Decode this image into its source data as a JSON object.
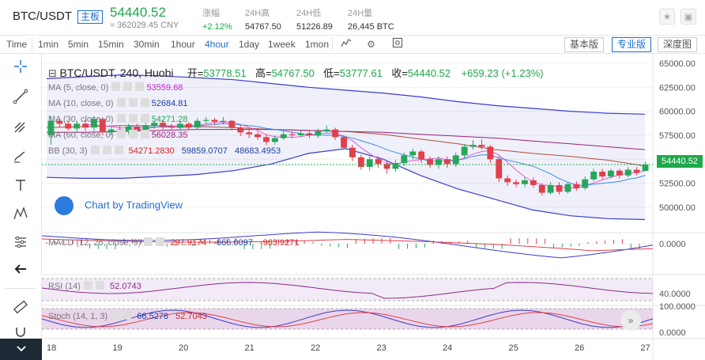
{
  "header": {
    "symbol": "BTC/USDT",
    "tag": "主板",
    "price": "54440.52",
    "cny": "≈ 362029.45 CNY",
    "stats": [
      {
        "label": "涨幅",
        "value": "+2.12%",
        "green": true
      },
      {
        "label": "24H高",
        "value": "54767.50",
        "green": false
      },
      {
        "label": "24H低",
        "value": "51226.89",
        "green": false
      },
      {
        "label": "24H量",
        "value": "26,445 BTC",
        "green": false
      }
    ],
    "star_icon": "star-icon",
    "window_icon": "window-icon"
  },
  "toolbar": {
    "time_label": "Time",
    "intervals": [
      "1min",
      "5min",
      "15min",
      "30min",
      "1hour",
      "4hour",
      "1day",
      "1week",
      "1mon"
    ],
    "active_interval": "4hour",
    "icons": [
      "indicator-icon",
      "settings-icon",
      "screenshot-icon"
    ],
    "views": [
      "基本版",
      "专业版",
      "深度图"
    ],
    "active_view": "专业版"
  },
  "tools": [
    "crosshair-icon",
    "trendline-icon",
    "pitchfork-icon",
    "brush-icon",
    "text-icon",
    "pattern-icon",
    "measure-icon",
    "arrow-left-icon",
    "ruler-icon",
    "magnet-icon"
  ],
  "legend": {
    "title": "BTC/USDT, 240, Huobi",
    "open_label": "开=",
    "open": "53778.51",
    "high_label": "高=",
    "high": "54767.50",
    "low_label": "低=",
    "low": "53777.61",
    "close_label": "收=",
    "close": "54440.52",
    "change": "+659.23 (+1.23%)",
    "ma": [
      {
        "label": "MA (5, close, 0)",
        "value": "53559.68",
        "color": "#c61fc6"
      },
      {
        "label": "MA (10, close, 0)",
        "value": "52684.81",
        "color": "#1a3fa3"
      },
      {
        "label": "MA (30, close, 0)",
        "value": "54271.28",
        "color": "#1fa84b"
      },
      {
        "label": "MA (60, close, 0)",
        "value": "56028.35",
        "color": "#9b1f7a"
      }
    ],
    "bb": {
      "label": "BB (30, 3)",
      "v1": "54271.2830",
      "v2": "59859.0707",
      "v3": "48683.4953"
    }
  },
  "price_axis": [
    "65000.00",
    "62500.00",
    "60000.00",
    "57500.00",
    "55000.00",
    "52500.00",
    "50000.00"
  ],
  "current_price_tag": "54440.52",
  "date_axis": [
    "18",
    "19",
    "20",
    "21",
    "22",
    "23",
    "24",
    "25",
    "26",
    "27"
  ],
  "watermark": "Chart by TradingView",
  "macd": {
    "label": "MACD (12, 26, close, 9)",
    "v1": "297.9174",
    "v2": "-666.0097",
    "v3": "-963.9271",
    "axis": [
      "0.0000"
    ]
  },
  "rsi": {
    "label": "RSI (14)",
    "value": "52.0743",
    "axis": [
      "40.0000"
    ]
  },
  "stoch": {
    "label": "Stoch (14, 1, 3)",
    "v1": "66.5278",
    "v2": "52.7043",
    "axis": [
      "100.0000",
      "0.0000"
    ]
  },
  "chart_data": {
    "type": "candlestick",
    "symbol": "BTC/USDT",
    "interval": "240",
    "exchange": "Huobi",
    "candles": [
      {
        "o": 57500,
        "c": 59000,
        "h": 59500,
        "l": 56500
      },
      {
        "o": 59000,
        "c": 58700,
        "h": 59300,
        "l": 58300
      },
      {
        "o": 58700,
        "c": 58200,
        "h": 59000,
        "l": 58000
      },
      {
        "o": 58200,
        "c": 58700,
        "h": 59000,
        "l": 57800
      },
      {
        "o": 58700,
        "c": 58300,
        "h": 59100,
        "l": 58000
      },
      {
        "o": 58300,
        "c": 59200,
        "h": 59500,
        "l": 57900
      },
      {
        "o": 59200,
        "c": 57800,
        "h": 59400,
        "l": 57500
      },
      {
        "o": 57800,
        "c": 58100,
        "h": 58400,
        "l": 57500
      },
      {
        "o": 58100,
        "c": 57900,
        "h": 58500,
        "l": 57600
      },
      {
        "o": 57900,
        "c": 58400,
        "h": 58700,
        "l": 57600
      },
      {
        "o": 58400,
        "c": 58000,
        "h": 58700,
        "l": 57700
      },
      {
        "o": 58000,
        "c": 58500,
        "h": 58800,
        "l": 57800
      },
      {
        "o": 58500,
        "c": 58800,
        "h": 59000,
        "l": 58200
      },
      {
        "o": 58800,
        "c": 58400,
        "h": 59100,
        "l": 58000
      },
      {
        "o": 58400,
        "c": 58300,
        "h": 58700,
        "l": 58000
      },
      {
        "o": 58300,
        "c": 58700,
        "h": 59000,
        "l": 58000
      },
      {
        "o": 58700,
        "c": 58300,
        "h": 58900,
        "l": 58000
      },
      {
        "o": 58300,
        "c": 59000,
        "h": 59300,
        "l": 58100
      },
      {
        "o": 59000,
        "c": 59100,
        "h": 59400,
        "l": 58700
      },
      {
        "o": 59100,
        "c": 58900,
        "h": 59300,
        "l": 58600
      },
      {
        "o": 58900,
        "c": 59000,
        "h": 59400,
        "l": 58600
      },
      {
        "o": 59000,
        "c": 58300,
        "h": 59100,
        "l": 58000
      },
      {
        "o": 58300,
        "c": 57800,
        "h": 58600,
        "l": 57400
      },
      {
        "o": 57800,
        "c": 57600,
        "h": 58100,
        "l": 57200
      },
      {
        "o": 57600,
        "c": 57300,
        "h": 57900,
        "l": 57000
      },
      {
        "o": 57300,
        "c": 56800,
        "h": 57600,
        "l": 56500
      },
      {
        "o": 56800,
        "c": 57200,
        "h": 57500,
        "l": 56500
      },
      {
        "o": 57200,
        "c": 57600,
        "h": 57900,
        "l": 57000
      },
      {
        "o": 57600,
        "c": 57500,
        "h": 57900,
        "l": 57200
      },
      {
        "o": 57500,
        "c": 57700,
        "h": 58000,
        "l": 57300
      },
      {
        "o": 57700,
        "c": 57500,
        "h": 58000,
        "l": 57200
      },
      {
        "o": 57500,
        "c": 57900,
        "h": 58200,
        "l": 57200
      },
      {
        "o": 57900,
        "c": 58100,
        "h": 58500,
        "l": 57700
      },
      {
        "o": 58100,
        "c": 57300,
        "h": 58300,
        "l": 57000
      },
      {
        "o": 57300,
        "c": 56200,
        "h": 57500,
        "l": 56000
      },
      {
        "o": 56200,
        "c": 55200,
        "h": 56500,
        "l": 54800
      },
      {
        "o": 55200,
        "c": 54200,
        "h": 55500,
        "l": 53900
      },
      {
        "o": 54200,
        "c": 55000,
        "h": 55300,
        "l": 53800
      },
      {
        "o": 55000,
        "c": 54500,
        "h": 55300,
        "l": 54100
      },
      {
        "o": 54500,
        "c": 54000,
        "h": 54800,
        "l": 53500
      },
      {
        "o": 54000,
        "c": 54600,
        "h": 54900,
        "l": 53700
      },
      {
        "o": 54600,
        "c": 55400,
        "h": 55700,
        "l": 54300
      },
      {
        "o": 55400,
        "c": 55800,
        "h": 56100,
        "l": 55000
      },
      {
        "o": 55800,
        "c": 55000,
        "h": 56000,
        "l": 54600
      },
      {
        "o": 55000,
        "c": 54400,
        "h": 55300,
        "l": 54100
      },
      {
        "o": 54400,
        "c": 55000,
        "h": 55300,
        "l": 54000
      },
      {
        "o": 55000,
        "c": 54500,
        "h": 55300,
        "l": 54100
      },
      {
        "o": 54500,
        "c": 55400,
        "h": 55700,
        "l": 54200
      },
      {
        "o": 55400,
        "c": 56300,
        "h": 56600,
        "l": 55100
      },
      {
        "o": 56300,
        "c": 56500,
        "h": 57000,
        "l": 56000
      },
      {
        "o": 56500,
        "c": 56300,
        "h": 57100,
        "l": 56000
      },
      {
        "o": 56300,
        "c": 55000,
        "h": 56500,
        "l": 54600
      },
      {
        "o": 55000,
        "c": 53000,
        "h": 55300,
        "l": 52600
      },
      {
        "o": 53000,
        "c": 52600,
        "h": 53300,
        "l": 52200
      },
      {
        "o": 52600,
        "c": 52400,
        "h": 52900,
        "l": 52100
      },
      {
        "o": 52400,
        "c": 52800,
        "h": 53100,
        "l": 52100
      },
      {
        "o": 52800,
        "c": 52300,
        "h": 53100,
        "l": 52000
      },
      {
        "o": 52300,
        "c": 51500,
        "h": 52500,
        "l": 51200
      },
      {
        "o": 51500,
        "c": 52300,
        "h": 52600,
        "l": 51300
      },
      {
        "o": 52300,
        "c": 51600,
        "h": 52600,
        "l": 51300
      },
      {
        "o": 51600,
        "c": 52400,
        "h": 52600,
        "l": 51400
      },
      {
        "o": 52400,
        "c": 52000,
        "h": 52700,
        "l": 51700
      },
      {
        "o": 52000,
        "c": 52900,
        "h": 53200,
        "l": 51800
      },
      {
        "o": 52900,
        "c": 53700,
        "h": 54000,
        "l": 52700
      },
      {
        "o": 53700,
        "c": 53200,
        "h": 54000,
        "l": 52900
      },
      {
        "o": 53200,
        "c": 53800,
        "h": 54000,
        "l": 53000
      },
      {
        "o": 53800,
        "c": 53300,
        "h": 54000,
        "l": 53000
      },
      {
        "o": 53300,
        "c": 53900,
        "h": 54200,
        "l": 53100
      },
      {
        "o": 53900,
        "c": 53600,
        "h": 54200,
        "l": 53300
      },
      {
        "o": 53778.51,
        "c": 54440.52,
        "h": 54767.5,
        "l": 53777.61
      }
    ],
    "bb_upper": [
      63400,
      63600,
      63800,
      63700,
      63500,
      63300,
      62900,
      62500,
      62200,
      61900,
      61500,
      61000,
      60600,
      60300,
      60000,
      59800,
      59700
    ],
    "bb_lower": [
      53100,
      53000,
      53000,
      53200,
      53400,
      53800,
      54500,
      55600,
      56100,
      55000,
      53300,
      51900,
      50800,
      49700,
      49100,
      48800,
      48700
    ],
    "bb_mid": [
      58300,
      58400,
      58500,
      58500,
      58400,
      58300,
      58100,
      58000,
      57900,
      57600,
      57100,
      56600,
      56000,
      55600,
      55300,
      54900,
      54300
    ],
    "ma60": [
      57800,
      57800,
      57900,
      58000,
      58100,
      58100,
      58100,
      58000,
      57900,
      57800,
      57600,
      57400,
      57200,
      56900,
      56600,
      56300,
      56000
    ],
    "ylim": [
      48000,
      65500
    ],
    "price_ticks": [
      65000,
      62500,
      60000,
      57500,
      55000,
      52500,
      50000
    ],
    "current_price": 54440.52
  }
}
